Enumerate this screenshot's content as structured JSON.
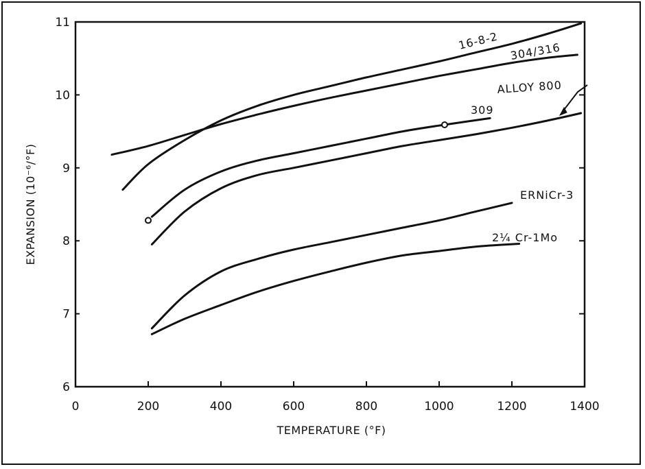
{
  "chart_data": {
    "type": "line",
    "title": "",
    "xlabel": "TEMPERATURE (°F)",
    "ylabel": "EXPANSION (10⁻⁶/°F)",
    "xlim": [
      0,
      1400
    ],
    "ylim": [
      6,
      11
    ],
    "xticks": [
      0,
      200,
      400,
      600,
      800,
      1000,
      1200,
      1400
    ],
    "yticks": [
      6,
      7,
      8,
      9,
      10,
      11
    ],
    "grid": false,
    "series": [
      {
        "name": "16-8-2",
        "x": [
          130,
          200,
          300,
          400,
          500,
          600,
          700,
          800,
          900,
          1000,
          1100,
          1200,
          1300,
          1390
        ],
        "y": [
          8.7,
          9.05,
          9.38,
          9.65,
          9.85,
          10.0,
          10.12,
          10.24,
          10.35,
          10.46,
          10.58,
          10.7,
          10.84,
          10.98
        ]
      },
      {
        "name": "304/316",
        "x": [
          100,
          200,
          300,
          400,
          500,
          600,
          700,
          800,
          900,
          1000,
          1100,
          1200,
          1300,
          1380
        ],
        "y": [
          9.18,
          9.3,
          9.45,
          9.6,
          9.73,
          9.85,
          9.96,
          10.06,
          10.16,
          10.26,
          10.35,
          10.44,
          10.51,
          10.55
        ]
      },
      {
        "name": "309",
        "x": [
          210,
          300,
          400,
          500,
          600,
          700,
          800,
          900,
          1000,
          1140
        ],
        "y": [
          8.33,
          8.7,
          8.95,
          9.1,
          9.2,
          9.3,
          9.4,
          9.5,
          9.58,
          9.68
        ]
      },
      {
        "name": "ALLOY 800",
        "x": [
          210,
          300,
          400,
          500,
          600,
          700,
          800,
          900,
          1000,
          1100,
          1200,
          1300,
          1390
        ],
        "y": [
          7.95,
          8.4,
          8.72,
          8.9,
          9.0,
          9.1,
          9.2,
          9.3,
          9.38,
          9.46,
          9.55,
          9.65,
          9.75
        ]
      },
      {
        "name": "ERNiCr-3",
        "x": [
          210,
          300,
          400,
          500,
          600,
          700,
          800,
          900,
          1000,
          1100,
          1200
        ],
        "y": [
          6.8,
          7.25,
          7.58,
          7.75,
          7.88,
          7.98,
          8.08,
          8.18,
          8.28,
          8.4,
          8.52
        ]
      },
      {
        "name": "2¼ Cr-1Mo",
        "x": [
          210,
          300,
          400,
          500,
          600,
          700,
          800,
          900,
          1000,
          1100,
          1220
        ],
        "y": [
          6.72,
          6.93,
          7.12,
          7.3,
          7.45,
          7.58,
          7.7,
          7.8,
          7.86,
          7.92,
          7.96
        ]
      }
    ],
    "markers": [
      {
        "series": "309",
        "x": 200,
        "y": 8.28
      },
      {
        "series": "309",
        "x": 1015,
        "y": 9.59
      }
    ],
    "annotations": [
      {
        "text": "16-8-2",
        "series": "16-8-2"
      },
      {
        "text": "304/316",
        "series": "304/316"
      },
      {
        "text": "ALLOY 800",
        "series": "ALLOY 800"
      },
      {
        "text": "309",
        "series": "309"
      },
      {
        "text": "ERNiCr-3",
        "series": "ERNiCr-3"
      },
      {
        "text": "2¼ Cr-1Mo",
        "series": "2¼ Cr-1Mo"
      }
    ]
  }
}
